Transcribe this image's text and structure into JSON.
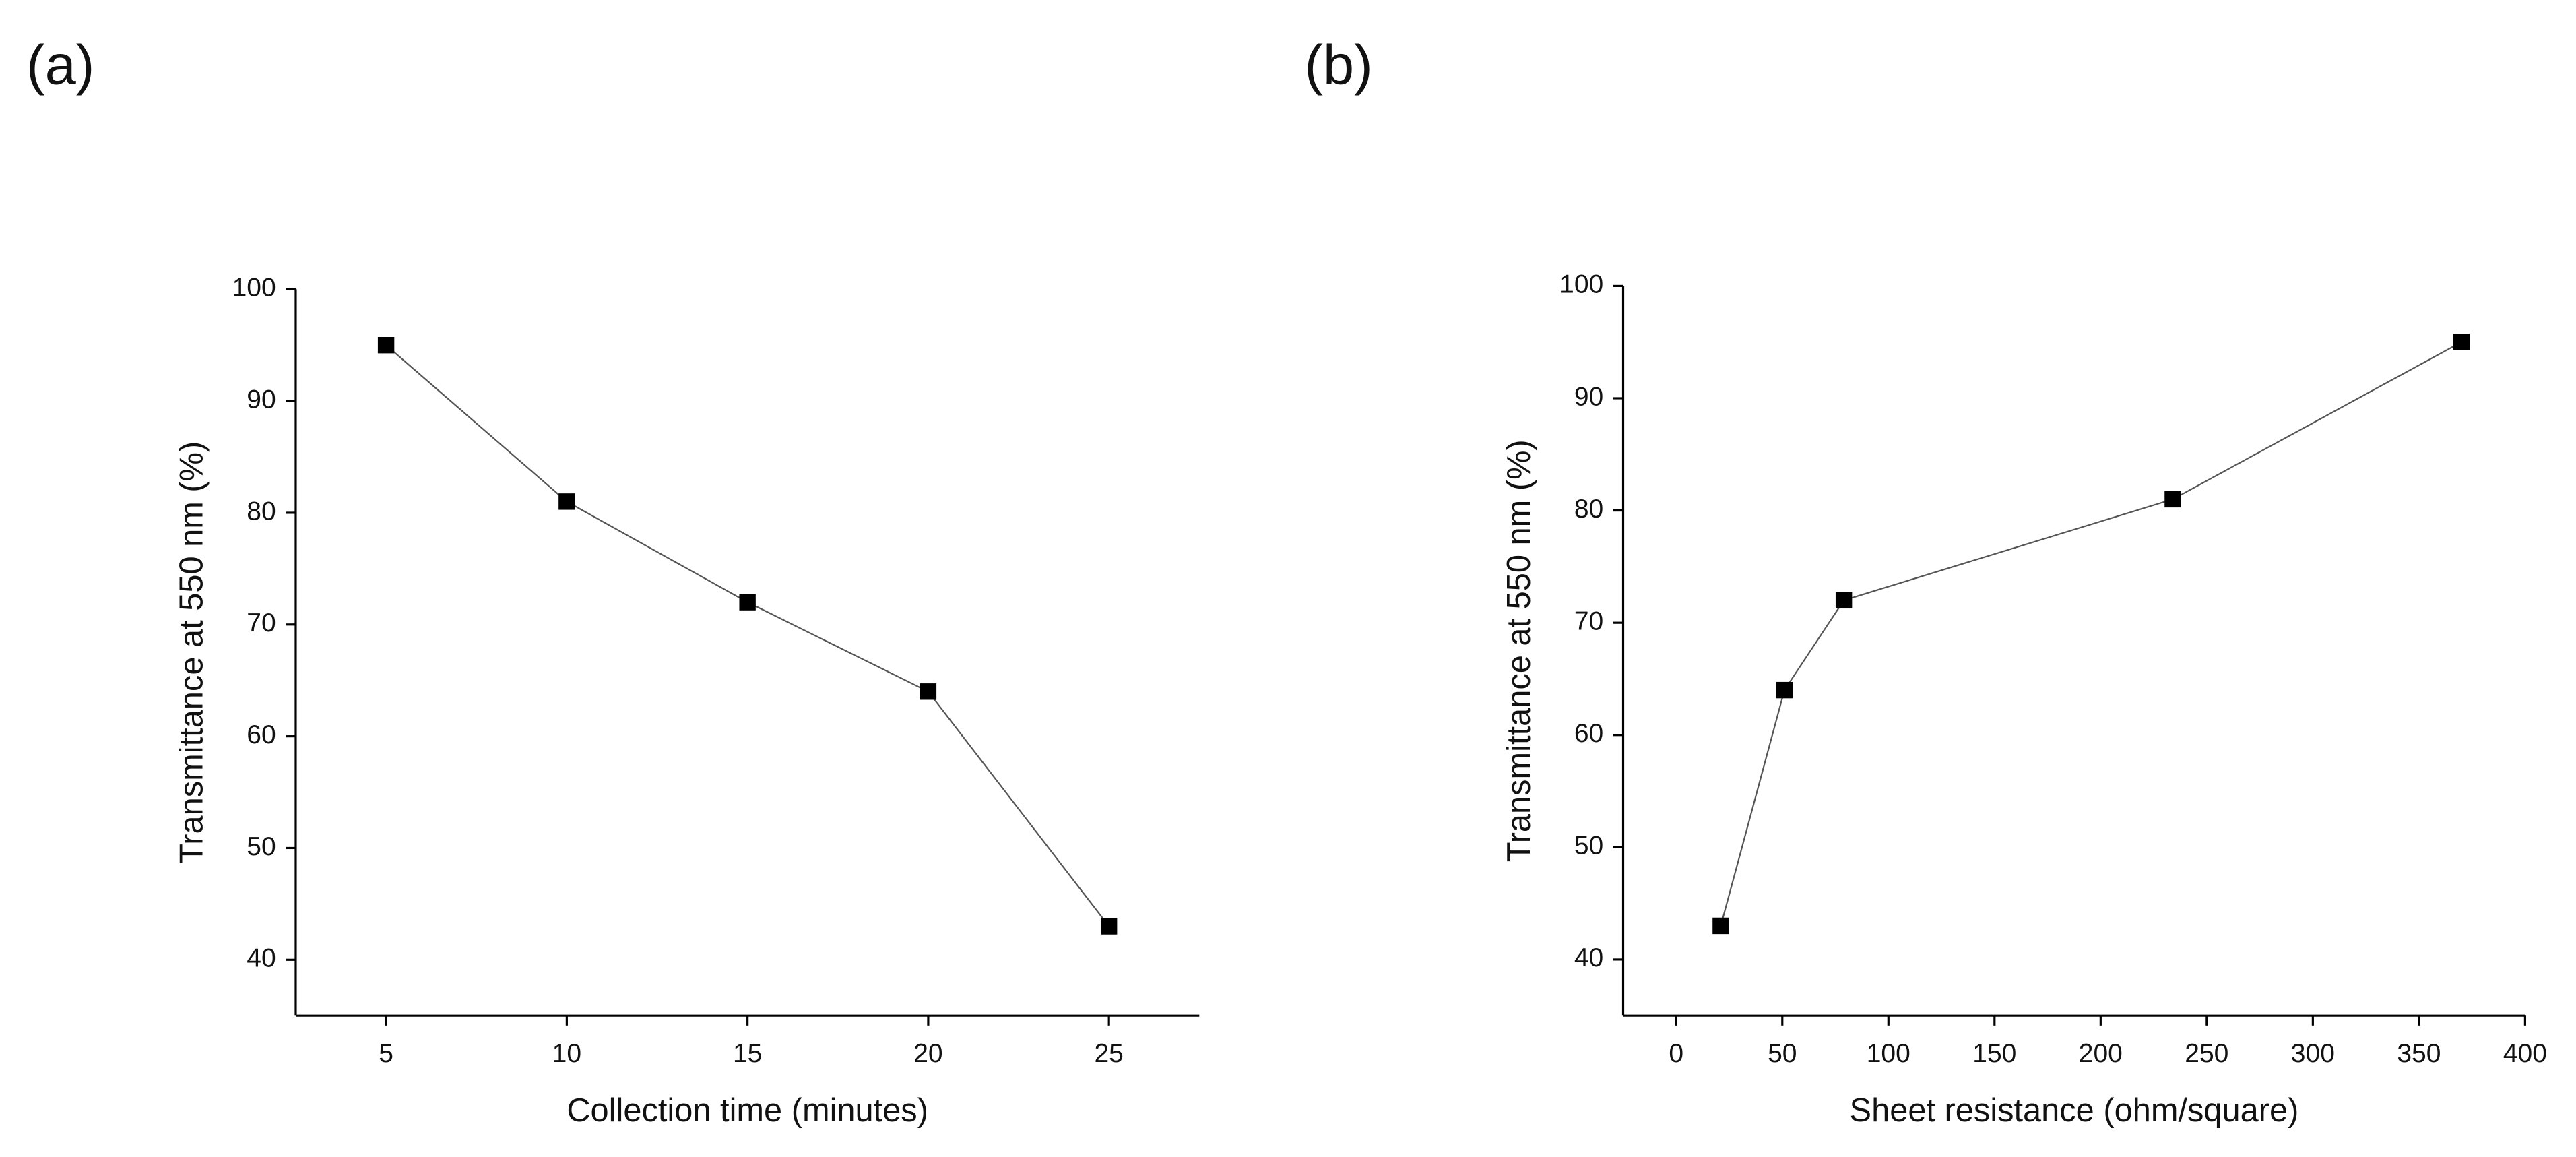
{
  "chart_data": [
    {
      "type": "line",
      "label": "(a)",
      "xlabel": "Collection time (minutes)",
      "ylabel": "Transmittance at 550 nm (%)",
      "x": [
        5,
        10,
        15,
        20,
        25
      ],
      "values": [
        95,
        81,
        72,
        64,
        43
      ],
      "color": "#000000",
      "xlim": [
        2.5,
        27.5
      ],
      "xticks": [
        5,
        10,
        15,
        20,
        25
      ],
      "ylim": [
        35,
        100
      ],
      "yticks": [
        40,
        50,
        60,
        70,
        80,
        90,
        100
      ]
    },
    {
      "type": "line",
      "label": "(b)",
      "xlabel": "Sheet resistance (ohm/square)",
      "ylabel": "Transmittance at 550 nm (%)",
      "x": [
        21,
        51,
        79,
        234,
        370
      ],
      "values": [
        43,
        64,
        72,
        81,
        95
      ],
      "color": "#000000",
      "xlim": [
        -25,
        400
      ],
      "xticks": [
        0,
        50,
        100,
        150,
        200,
        250,
        300,
        350,
        400
      ],
      "ylim": [
        35,
        100
      ],
      "yticks": [
        40,
        50,
        60,
        70,
        80,
        90,
        100
      ]
    }
  ]
}
